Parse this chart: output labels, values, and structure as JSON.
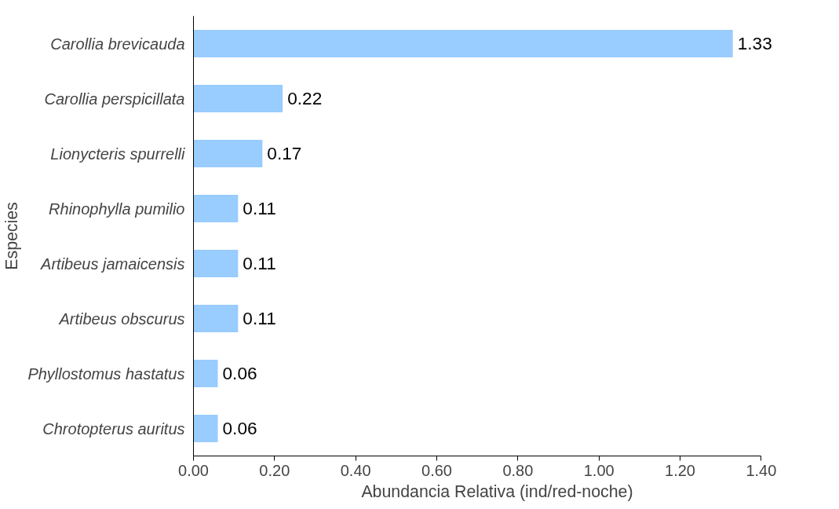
{
  "chart_data": {
    "type": "bar",
    "orientation": "horizontal",
    "xlabel": "Abundancia Relativa (ind/red-noche)",
    "ylabel": "Especies",
    "categories": [
      "Carollia brevicauda",
      "Carollia perspicillata",
      "Lionycteris spurrelli",
      "Rhinophylla pumilio",
      "Artibeus jamaicensis",
      "Artibeus obscurus",
      "Phyllostomus hastatus",
      "Chrotopterus auritus"
    ],
    "values": [
      1.33,
      0.22,
      0.17,
      0.11,
      0.11,
      0.11,
      0.06,
      0.06
    ],
    "color": "#99ccff",
    "data_labels": true,
    "grid": false,
    "xlim": [
      0,
      1.4
    ],
    "xticks": [
      {
        "value": 0,
        "label": "0.00"
      },
      {
        "value": 0.2,
        "label": "0.20"
      },
      {
        "value": 0.4,
        "label": "0.40"
      },
      {
        "value": 0.6,
        "label": "0.60"
      },
      {
        "value": 0.8,
        "label": "0.80"
      },
      {
        "value": 1.0,
        "label": "1.00"
      },
      {
        "value": 1.2,
        "label": "1.20"
      },
      {
        "value": 1.4,
        "label": "1.40"
      }
    ]
  }
}
